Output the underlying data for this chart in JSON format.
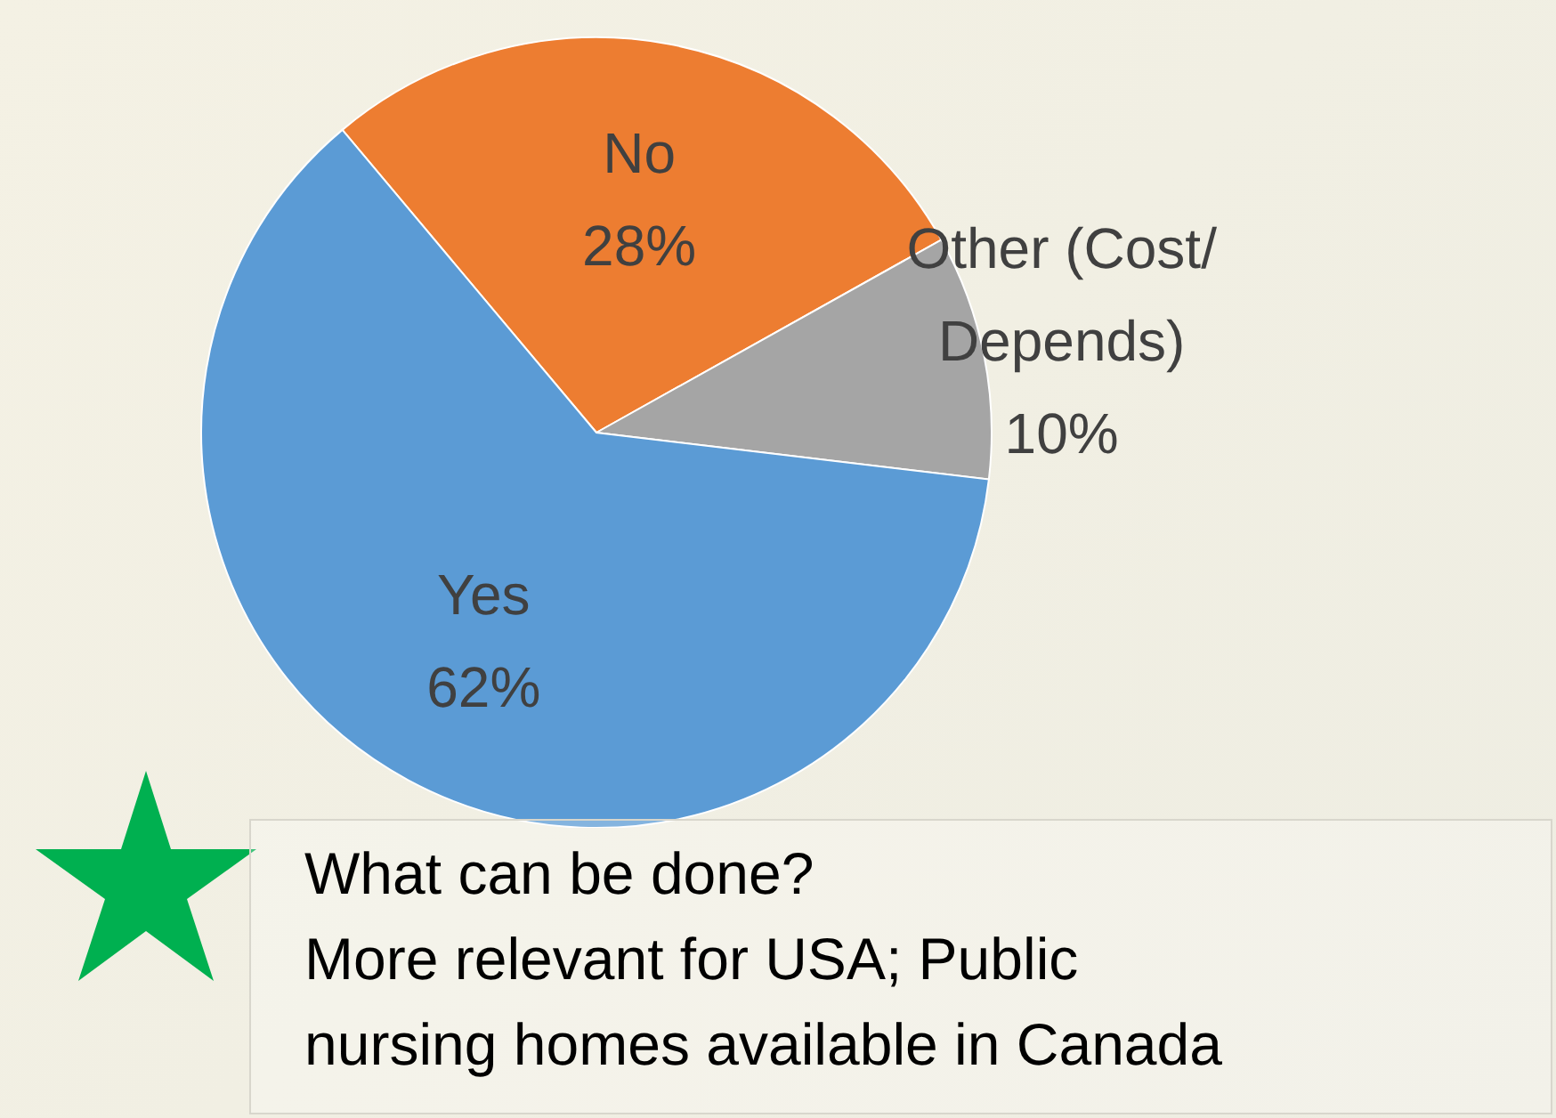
{
  "chart_data": {
    "type": "pie",
    "categories": [
      "No",
      "Other (Cost/ Depends)",
      "Yes"
    ],
    "values": [
      28,
      10,
      62
    ],
    "colors": [
      "#ed7d31",
      "#a5a5a5",
      "#5b9bd5"
    ],
    "value_labels": [
      "28%",
      "10%",
      "62%"
    ],
    "annotations": [
      "What can be done?",
      "More relevant for USA; Public nursing homes available in Canada"
    ]
  }
}
